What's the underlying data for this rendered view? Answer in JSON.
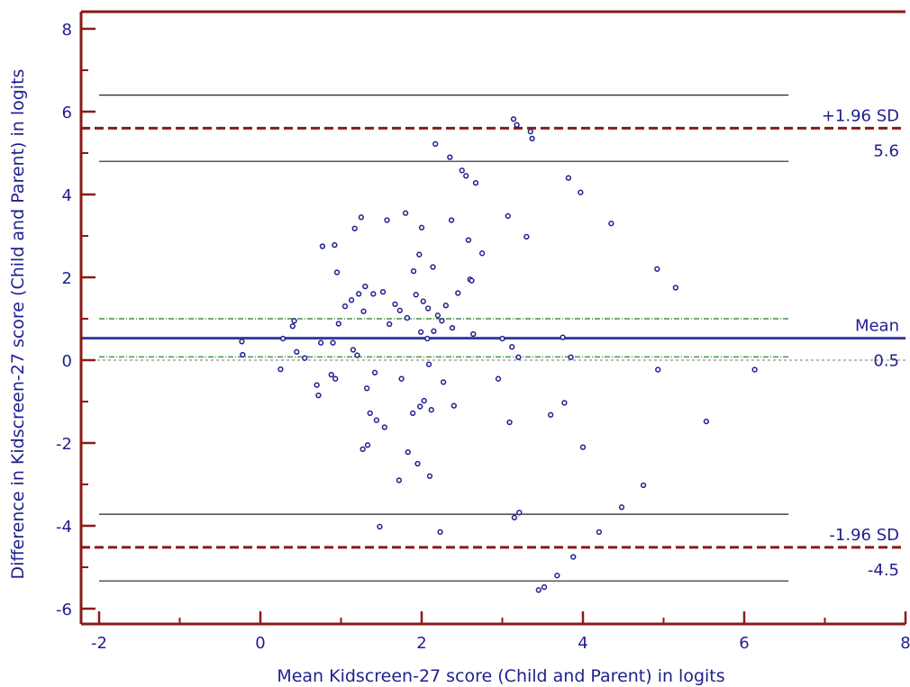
{
  "chart_data": {
    "type": "scatter",
    "title": "",
    "xlabel": "Mean Kidscreen-27 score (Child and Parent) in logits",
    "ylabel": "Difference in Kidscreen-27 score (Child and Parent) in logits",
    "xlim": [
      -2,
      8
    ],
    "ylim": [
      -6.4,
      8.4
    ],
    "x_ticks": [
      -2,
      0,
      2,
      4,
      6,
      8
    ],
    "y_ticks": [
      -6,
      -4,
      -2,
      0,
      2,
      4,
      6,
      8
    ],
    "grid": false,
    "colors": {
      "axis": "#8b1a1a",
      "text": "#1f1f8f",
      "points": "#1f1f8f",
      "mean_line": "#3a3aa0",
      "loa_line": "#8b1a1a",
      "ci_loa": "#222222",
      "ci_mean": "#1f7a1f",
      "zero_line": "#bbbbbb"
    },
    "reference_lines": {
      "mean": {
        "value": 0.53,
        "label": "Mean",
        "value_label": "0.5"
      },
      "upper_loa": {
        "value": 5.6,
        "label": "+1.96 SD",
        "value_label": "5.6"
      },
      "lower_loa": {
        "value": -4.52,
        "label": "-1.96 SD",
        "value_label": "-4.5"
      },
      "upper_loa_ci": [
        4.8,
        6.4
      ],
      "lower_loa_ci": [
        -5.33,
        -3.72
      ],
      "mean_ci": [
        0.08,
        1.0
      ],
      "ci_x_range": [
        -2,
        6.55
      ],
      "zero": 0
    },
    "points": [
      [
        -0.23,
        0.45
      ],
      [
        -0.22,
        0.13
      ],
      [
        0.25,
        -0.22
      ],
      [
        0.28,
        0.52
      ],
      [
        0.4,
        0.82
      ],
      [
        0.42,
        0.95
      ],
      [
        0.45,
        0.2
      ],
      [
        0.55,
        0.05
      ],
      [
        0.7,
        -0.6
      ],
      [
        0.72,
        -0.85
      ],
      [
        0.75,
        0.42
      ],
      [
        0.77,
        2.75
      ],
      [
        0.88,
        -0.35
      ],
      [
        0.9,
        0.42
      ],
      [
        0.92,
        2.78
      ],
      [
        0.93,
        -0.45
      ],
      [
        0.95,
        2.12
      ],
      [
        0.97,
        0.88
      ],
      [
        1.05,
        1.3
      ],
      [
        1.13,
        1.45
      ],
      [
        1.15,
        0.25
      ],
      [
        1.17,
        3.18
      ],
      [
        1.2,
        0.12
      ],
      [
        1.22,
        1.6
      ],
      [
        1.25,
        3.45
      ],
      [
        1.27,
        -2.15
      ],
      [
        1.28,
        1.18
      ],
      [
        1.3,
        1.78
      ],
      [
        1.32,
        -0.68
      ],
      [
        1.33,
        -2.05
      ],
      [
        1.36,
        -1.28
      ],
      [
        1.4,
        1.6
      ],
      [
        1.42,
        -0.3
      ],
      [
        1.44,
        -1.45
      ],
      [
        1.48,
        -4.02
      ],
      [
        1.52,
        1.65
      ],
      [
        1.54,
        -1.62
      ],
      [
        1.57,
        3.38
      ],
      [
        1.6,
        0.87
      ],
      [
        1.67,
        1.35
      ],
      [
        1.72,
        -2.9
      ],
      [
        1.73,
        1.2
      ],
      [
        1.75,
        -0.45
      ],
      [
        1.8,
        3.55
      ],
      [
        1.82,
        1.02
      ],
      [
        1.83,
        -2.22
      ],
      [
        1.89,
        -1.28
      ],
      [
        1.9,
        2.15
      ],
      [
        1.93,
        1.58
      ],
      [
        1.95,
        -2.5
      ],
      [
        1.97,
        2.55
      ],
      [
        1.98,
        -1.12
      ],
      [
        1.99,
        0.68
      ],
      [
        2.0,
        3.2
      ],
      [
        2.02,
        1.42
      ],
      [
        2.03,
        -0.98
      ],
      [
        2.07,
        0.52
      ],
      [
        2.08,
        1.25
      ],
      [
        2.09,
        -0.1
      ],
      [
        2.1,
        -2.8
      ],
      [
        2.12,
        -1.2
      ],
      [
        2.14,
        2.25
      ],
      [
        2.15,
        0.7
      ],
      [
        2.17,
        5.22
      ],
      [
        2.2,
        1.08
      ],
      [
        2.23,
        -4.15
      ],
      [
        2.25,
        0.95
      ],
      [
        2.27,
        -0.53
      ],
      [
        2.3,
        1.32
      ],
      [
        2.35,
        4.9
      ],
      [
        2.37,
        3.38
      ],
      [
        2.38,
        0.78
      ],
      [
        2.4,
        -1.1
      ],
      [
        2.45,
        1.62
      ],
      [
        2.5,
        4.58
      ],
      [
        2.55,
        4.45
      ],
      [
        2.58,
        2.9
      ],
      [
        2.6,
        1.95
      ],
      [
        2.62,
        1.92
      ],
      [
        2.64,
        0.63
      ],
      [
        2.67,
        4.28
      ],
      [
        2.75,
        2.58
      ],
      [
        2.95,
        -0.45
      ],
      [
        3.0,
        0.52
      ],
      [
        3.07,
        3.48
      ],
      [
        3.09,
        -1.5
      ],
      [
        3.12,
        0.32
      ],
      [
        3.14,
        5.82
      ],
      [
        3.15,
        -3.8
      ],
      [
        3.18,
        5.68
      ],
      [
        3.2,
        0.07
      ],
      [
        3.21,
        -3.68
      ],
      [
        3.3,
        2.98
      ],
      [
        3.35,
        5.52
      ],
      [
        3.37,
        5.35
      ],
      [
        3.45,
        -5.55
      ],
      [
        3.52,
        -5.48
      ],
      [
        3.6,
        -1.32
      ],
      [
        3.68,
        -5.2
      ],
      [
        3.75,
        0.55
      ],
      [
        3.77,
        -1.03
      ],
      [
        3.82,
        4.4
      ],
      [
        3.85,
        0.07
      ],
      [
        3.88,
        -4.75
      ],
      [
        3.97,
        4.05
      ],
      [
        4.0,
        -2.1
      ],
      [
        4.2,
        -4.15
      ],
      [
        4.35,
        3.3
      ],
      [
        4.48,
        -3.55
      ],
      [
        4.75,
        -3.02
      ],
      [
        4.92,
        2.2
      ],
      [
        4.93,
        -0.23
      ],
      [
        5.15,
        1.75
      ],
      [
        5.53,
        -1.48
      ],
      [
        6.13,
        -0.23
      ]
    ]
  }
}
